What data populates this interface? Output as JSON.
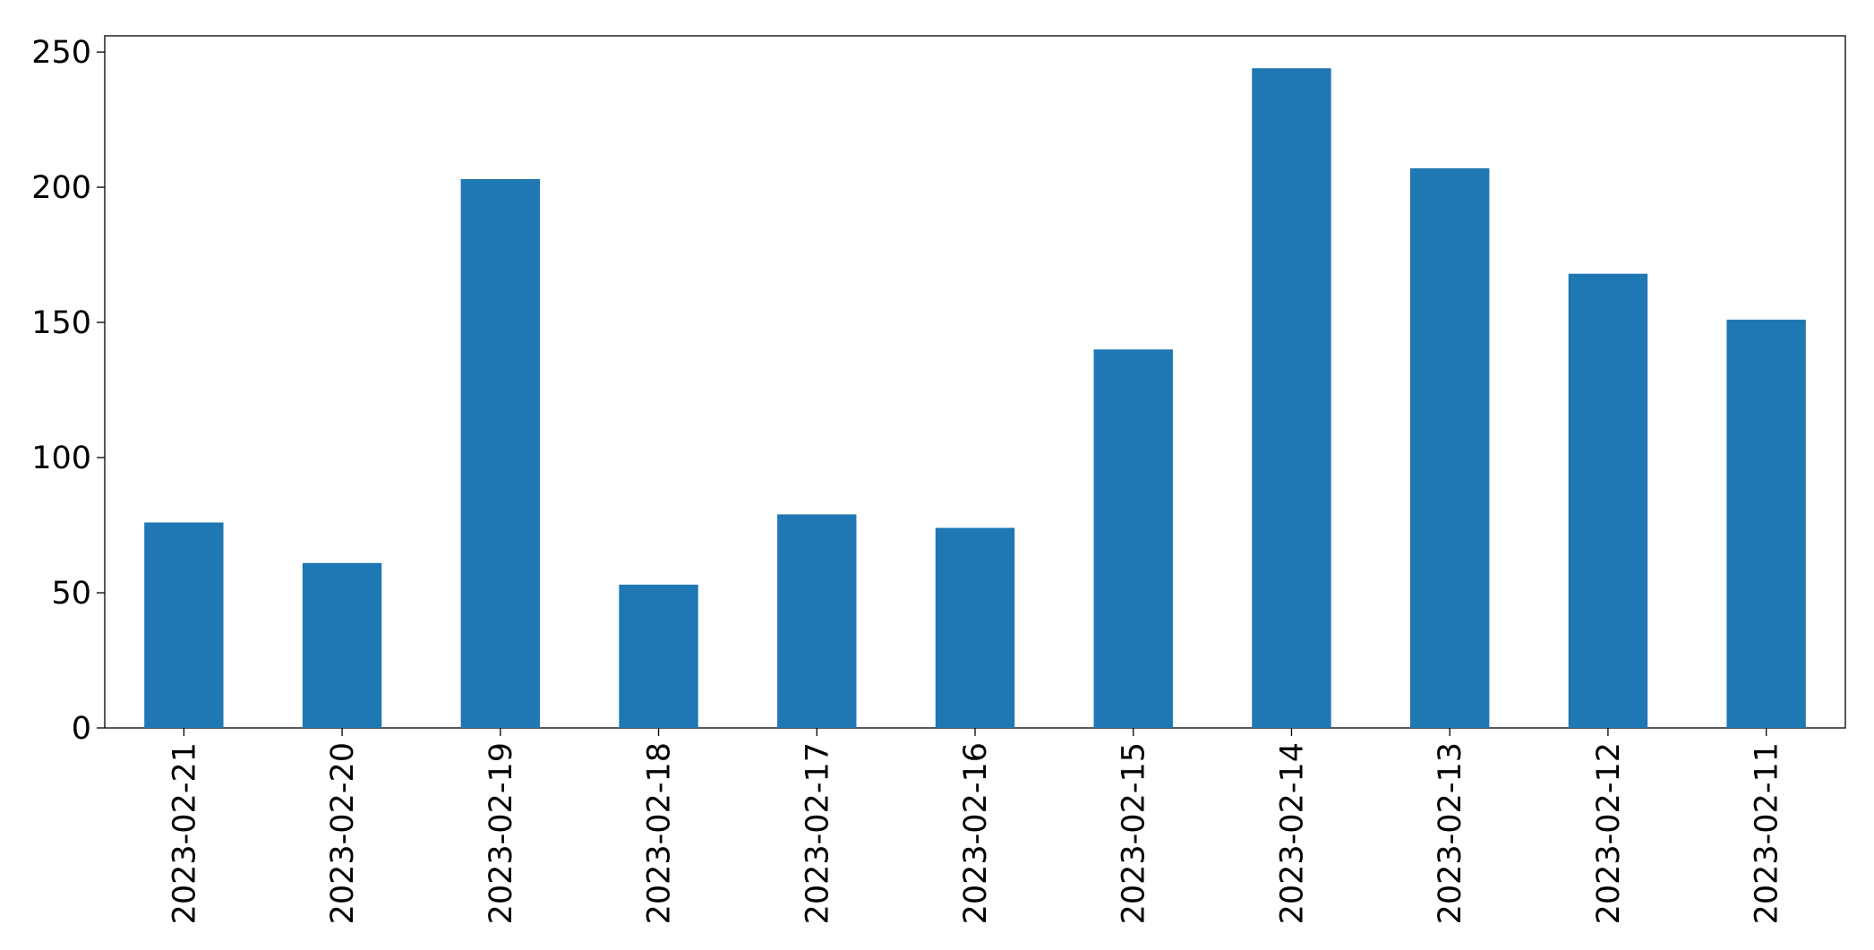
{
  "chart_data": {
    "type": "bar",
    "categories": [
      "2023-02-21",
      "2023-02-20",
      "2023-02-19",
      "2023-02-18",
      "2023-02-17",
      "2023-02-16",
      "2023-02-15",
      "2023-02-14",
      "2023-02-13",
      "2023-02-12",
      "2023-02-11"
    ],
    "values": [
      76,
      61,
      203,
      53,
      79,
      74,
      140,
      244,
      207,
      168,
      151
    ],
    "color": "#1f77b4",
    "ylim": [
      0,
      256
    ],
    "yticks": [
      0,
      50,
      100,
      150,
      200,
      250
    ],
    "grid": false
  }
}
